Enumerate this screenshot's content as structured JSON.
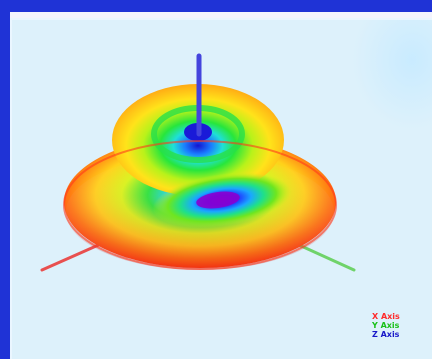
{
  "viewer": {
    "legend": {
      "x_axis": "X Axis",
      "y_axis": "Y Axis",
      "z_axis": "Z Axis"
    }
  },
  "colors": {
    "frame": "#1f33d6",
    "background": "#ddf1fb",
    "x_axis": "#ff2a2a",
    "y_axis": "#18c018",
    "z_axis": "#1818c8"
  },
  "icons": {
    "radiation_pattern": "3d-radiation-pattern-surface"
  }
}
